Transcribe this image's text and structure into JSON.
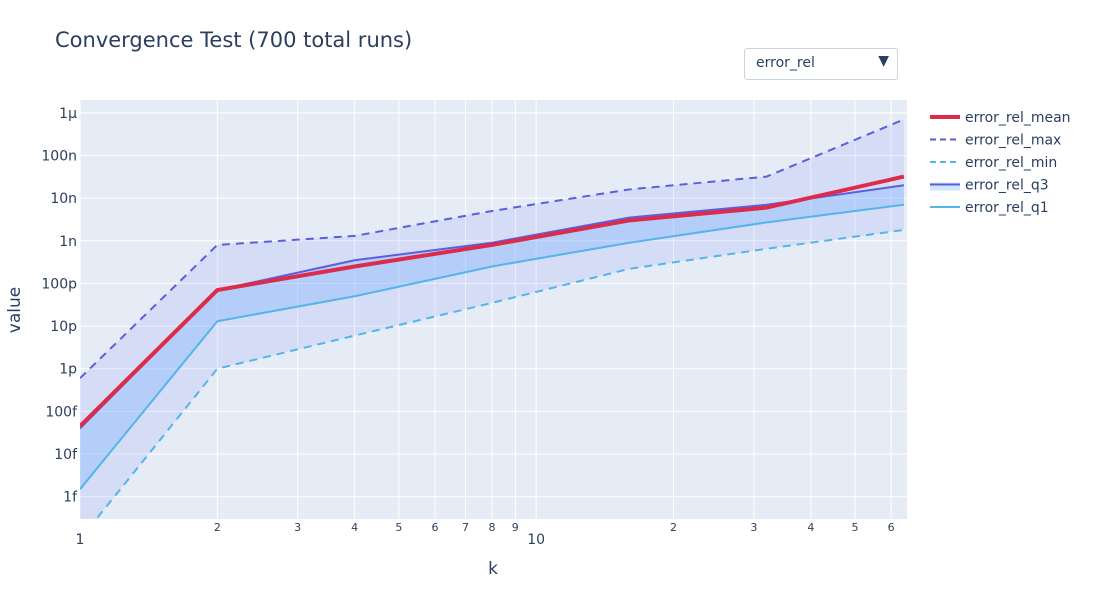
{
  "chart_data": {
    "type": "line",
    "title": "Convergence Test (700 total runs)",
    "xlabel": "k",
    "ylabel": "value",
    "xscale": "log",
    "yscale": "log",
    "xlim": [
      1,
      65
    ],
    "ylim": [
      3e-16,
      2e-06
    ],
    "grid": true,
    "legend_position": "right",
    "x": [
      1,
      2,
      4,
      8,
      16,
      32,
      64
    ],
    "series": [
      {
        "name": "error_rel_mean",
        "color": "#dc2b4b",
        "dash": "solid",
        "width": 4,
        "values": [
          4.5e-14,
          7e-11,
          2.5e-10,
          8e-10,
          3e-09,
          6e-09,
          3.2e-08
        ]
      },
      {
        "name": "error_rel_max",
        "color": "#5a5fdb",
        "dash": "dashed",
        "width": 2,
        "values": [
          6e-13,
          8e-10,
          1.3e-09,
          5e-09,
          1.6e-08,
          3.2e-08,
          7e-07
        ]
      },
      {
        "name": "error_rel_min",
        "color": "#55b4ea",
        "dash": "dashed",
        "width": 2,
        "values": [
          1e-16,
          1e-12,
          6e-12,
          3.5e-11,
          2.2e-10,
          6.5e-10,
          1.8e-09
        ]
      },
      {
        "name": "error_rel_q3",
        "color": "#5a5fdb",
        "dash": "solid",
        "width": 2,
        "values": [
          4e-14,
          7e-11,
          3.5e-10,
          9e-10,
          3.5e-09,
          7e-09,
          2e-08
        ]
      },
      {
        "name": "error_rel_q1",
        "color": "#55b4ea",
        "dash": "solid",
        "width": 2,
        "values": [
          1.5e-15,
          1.3e-11,
          5e-11,
          2.5e-10,
          9e-10,
          2.7e-09,
          7e-09
        ]
      }
    ],
    "y_tick_values": [
      1e-15,
      1e-14,
      1e-13,
      1e-12,
      1e-11,
      1e-10,
      1e-09,
      1e-08,
      1e-07,
      1e-06
    ],
    "y_tick_labels": [
      "1f",
      "10f",
      "100f",
      "1p",
      "10p",
      "100p",
      "1n",
      "10n",
      "100n",
      "1μ"
    ],
    "x_major_ticks": [
      1,
      10
    ],
    "x_major_labels": [
      "1",
      "10"
    ],
    "x_minor_ticks": [
      2,
      3,
      4,
      5,
      6,
      7,
      8,
      9,
      20,
      30,
      40,
      50,
      60
    ],
    "x_minor_labels": [
      "2",
      "3",
      "4",
      "5",
      "6",
      "7",
      "8",
      "9",
      "2",
      "3",
      "4",
      "5",
      "6"
    ]
  },
  "dropdown": {
    "selected": "error_rel",
    "arrow_icon": "triangle-down-icon"
  },
  "colors": {
    "plot_bg": "#e5ecf6",
    "grid": "#ffffff",
    "band_outer": "rgba(99,110,250,0.12)",
    "band_inner": "rgba(120,180,255,0.35)"
  }
}
